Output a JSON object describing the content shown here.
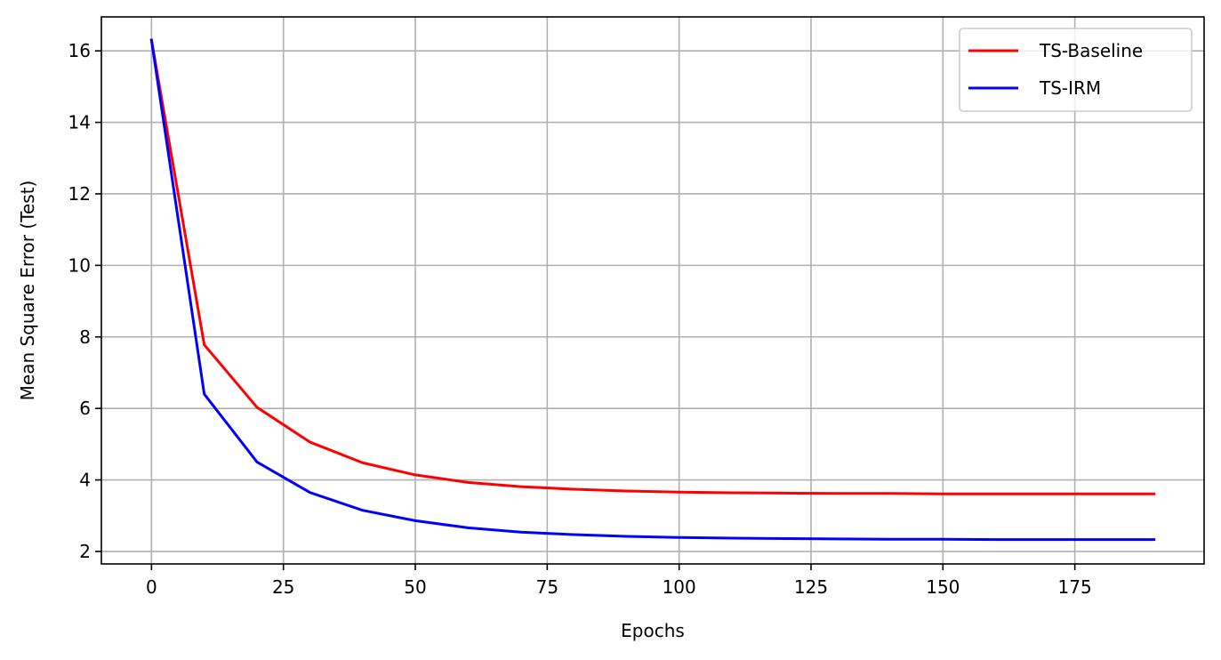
{
  "chart_data": {
    "type": "line",
    "title": "",
    "xlabel": "Epochs",
    "ylabel": "Mean Square Error (Test)",
    "xlim": [
      -9.5,
      199.5
    ],
    "ylim": [
      1.65,
      16.95
    ],
    "xticks": [
      0,
      25,
      50,
      75,
      100,
      125,
      150,
      175
    ],
    "yticks": [
      2,
      4,
      6,
      8,
      10,
      12,
      14,
      16
    ],
    "grid": true,
    "legend_position": "top-right",
    "x": [
      0,
      10,
      20,
      30,
      40,
      50,
      60,
      70,
      80,
      90,
      100,
      110,
      120,
      130,
      140,
      150,
      160,
      170,
      180,
      190
    ],
    "series": [
      {
        "name": "TS-Baseline",
        "color": "#ff0000",
        "values": [
          16.3,
          7.78,
          6.03,
          5.06,
          4.48,
          4.14,
          3.93,
          3.81,
          3.74,
          3.69,
          3.66,
          3.64,
          3.63,
          3.62,
          3.62,
          3.61,
          3.61,
          3.61,
          3.61,
          3.61
        ]
      },
      {
        "name": "TS-IRM",
        "color": "#0000ff",
        "values": [
          16.3,
          6.4,
          4.5,
          3.65,
          3.15,
          2.86,
          2.66,
          2.54,
          2.47,
          2.42,
          2.39,
          2.37,
          2.36,
          2.35,
          2.34,
          2.34,
          2.33,
          2.33,
          2.33,
          2.33
        ]
      }
    ]
  }
}
